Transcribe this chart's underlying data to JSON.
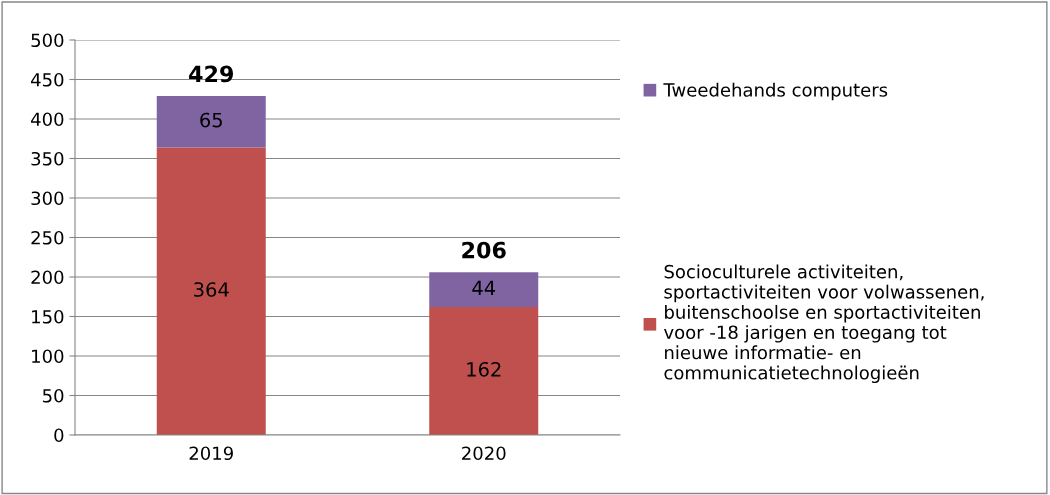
{
  "chart_data": {
    "type": "bar",
    "stacked": true,
    "categories": [
      "2019",
      "2020"
    ],
    "series": [
      {
        "name": "Socioculturele activiteiten,\nsportactiviteiten voor volwassenen,\nbuitenschoolse en sportactiviteiten\nvoor -18 jarigen en toegang tot\nnieuwe informatie- en\ncommunicatietechnologieën",
        "color": "#c0504d",
        "values": [
          364,
          162
        ]
      },
      {
        "name": "Tweedehands computers",
        "color": "#8064a2",
        "values": [
          65,
          44
        ]
      }
    ],
    "ylim": [
      0,
      500
    ],
    "yticks": [
      0,
      50,
      100,
      150,
      200,
      250,
      300,
      350,
      400,
      450,
      500
    ],
    "grid": "y",
    "legend": "right",
    "data_labels": true,
    "totals": [
      "429",
      "206"
    ]
  }
}
